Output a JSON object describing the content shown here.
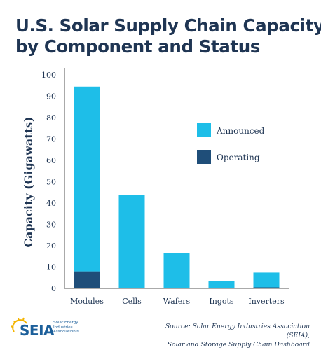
{
  "title_lines": [
    "U.S. Solar Supply Chain Capacity",
    "by Component and Status"
  ],
  "source_lines": [
    "Source: Solar Energy Industries Association (SEIA),",
    "Solar and Storage Supply Chain Dashboard"
  ],
  "logo": {
    "text": "SEIA",
    "tagline": [
      "Solar Energy",
      "Industries",
      "Association®"
    ]
  },
  "colors": {
    "announced": "#1ebee8",
    "operating": "#1f4e79",
    "text": "#1f3553",
    "axis": "#555555"
  },
  "chart_data": {
    "type": "bar",
    "stacked": true,
    "categories": [
      "Modules",
      "Cells",
      "Wafers",
      "Ingots",
      "Inverters"
    ],
    "series": [
      {
        "name": "Operating",
        "values": [
          8,
          0,
          0,
          0,
          0.5
        ]
      },
      {
        "name": "Announced",
        "values": [
          86.5,
          43.7,
          16.4,
          3.5,
          6.9
        ]
      }
    ],
    "ylabel": "Capacity (Gigawatts)",
    "xlabel": "",
    "ylim": [
      0,
      100
    ],
    "yticks": [
      0,
      10,
      20,
      30,
      40,
      50,
      60,
      70,
      80,
      90,
      100
    ],
    "legend": {
      "position": "right",
      "entries": [
        "Announced",
        "Operating"
      ]
    },
    "grid": false
  }
}
